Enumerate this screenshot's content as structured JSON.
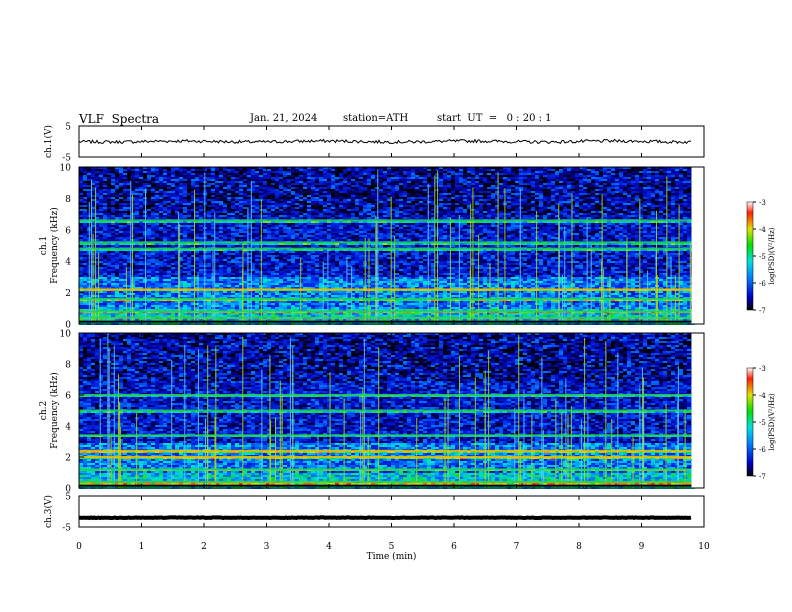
{
  "header": {
    "title": "VLF  Spectra",
    "date": "Jan. 21, 2024",
    "station": "station=ATH",
    "start": "start  UT  =   0 : 20 : 1"
  },
  "chart_data": [
    {
      "type": "line",
      "panel": "ch1-waveform",
      "ylabel": "ch.1(V)",
      "ylim": [
        -5,
        5
      ],
      "yticks": [
        "5",
        "-5"
      ],
      "xlim": [
        0,
        10
      ],
      "description_values": {
        "mean": 0,
        "amplitude": 0.5,
        "duration_min": 9.8
      }
    },
    {
      "type": "heatmap",
      "panel": "ch1-spectrogram",
      "ylabel": "ch.1\nFrequency  (kHz)",
      "ylim": [
        0,
        10
      ],
      "yticks": [
        "0",
        "2",
        "4",
        "6",
        "8",
        "10"
      ],
      "xlim": [
        0,
        10
      ],
      "data_end_min": 9.8,
      "colorbar": {
        "label": "log(PSD)(V²/Hz)",
        "range": [
          -7,
          -3
        ],
        "ticks": [
          "-3",
          "-4",
          "-5",
          "-6",
          "-7"
        ]
      },
      "bands_khz": [
        0.4,
        0.8,
        1.6,
        2.2,
        4.8,
        5.2,
        6.6
      ]
    },
    {
      "type": "heatmap",
      "panel": "ch2-spectrogram",
      "ylabel": "ch.2\nFrequency  (kHz)",
      "ylim": [
        0,
        10
      ],
      "yticks": [
        "0",
        "2",
        "4",
        "6",
        "8",
        "10"
      ],
      "xlim": [
        0,
        10
      ],
      "data_end_min": 9.8,
      "colorbar": {
        "label": "log(PSD)(V²/Hz)",
        "range": [
          -7,
          -3
        ],
        "ticks": [
          "-3",
          "-4",
          "-5",
          "-6",
          "-7"
        ]
      },
      "bands_khz": [
        0.4,
        1.2,
        2.0,
        2.4,
        3.4,
        5.0,
        6.0
      ]
    },
    {
      "type": "line",
      "panel": "ch3-waveform",
      "ylabel": "ch.3(V)",
      "ylim": [
        -5,
        5
      ],
      "yticks": [
        "5",
        "-5"
      ],
      "xlim": [
        0,
        10
      ],
      "description_values": {
        "mean": -2,
        "amplitude": 0.1,
        "duration_min": 9.8
      }
    }
  ],
  "x_axis": {
    "label": "Time  (min)",
    "ticks": [
      "0",
      "1",
      "2",
      "3",
      "4",
      "5",
      "6",
      "7",
      "8",
      "9",
      "10"
    ]
  }
}
